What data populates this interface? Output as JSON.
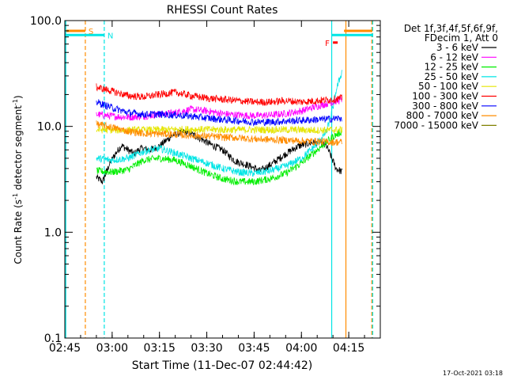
{
  "chart_data": {
    "type": "line",
    "title": "RHESSI Count Rates",
    "xlabel": "Start Time (11-Dec-07 02:44:42)",
    "ylabel_main": "Count Rate (s",
    "ylabel_sup1": "-1",
    "ylabel_mid": " detector segment",
    "ylabel_sup2": "-1",
    "ylabel_end": ")",
    "y_scale": "log",
    "ylim": [
      0.1,
      100.0
    ],
    "xlim_minutes": [
      0,
      100
    ],
    "yticks": [
      {
        "value": 100.0,
        "label": "100.0"
      },
      {
        "value": 10.0,
        "label": "10.0"
      },
      {
        "value": 1.0,
        "label": "1.0"
      },
      {
        "value": 0.1,
        "label": "0.1"
      }
    ],
    "xticks": [
      {
        "minute": 0,
        "label": "02:45"
      },
      {
        "minute": 15,
        "label": "03:00"
      },
      {
        "minute": 30,
        "label": "03:15"
      },
      {
        "minute": 45,
        "label": "03:30"
      },
      {
        "minute": 60,
        "label": "03:45"
      },
      {
        "minute": 75,
        "label": "04:00"
      },
      {
        "minute": 90,
        "label": "04:15"
      }
    ],
    "legend_header": [
      "Det 1f,3f,4f,5f,6f,9f,",
      "FDecim 1, Att 0"
    ],
    "legend_position": "right",
    "series": [
      {
        "name": "3 - 6 keV",
        "color": "#000000",
        "x": [
          10,
          12,
          14,
          16,
          18,
          20,
          22,
          24,
          27,
          30,
          34,
          38,
          42,
          46,
          50,
          54,
          58,
          62,
          66,
          70,
          74,
          78,
          81,
          83,
          86,
          88
        ],
        "y": [
          3.3,
          3.0,
          4.3,
          5.5,
          6.6,
          6.0,
          5.5,
          6.2,
          6.0,
          6.5,
          8.2,
          9.0,
          8.0,
          6.8,
          6.0,
          4.7,
          4.3,
          3.8,
          4.5,
          5.5,
          6.5,
          7.0,
          7.0,
          6.5,
          4.0,
          3.7
        ]
      },
      {
        "name": "6 - 12 keV",
        "color": "#ff00ff",
        "x": [
          10,
          15,
          20,
          25,
          30,
          35,
          40,
          45,
          50,
          55,
          60,
          65,
          70,
          75,
          80,
          85,
          88
        ],
        "y": [
          13.0,
          12.5,
          12.2,
          12.5,
          13.0,
          13.5,
          14.5,
          14.0,
          13.2,
          12.8,
          12.6,
          12.8,
          13.2,
          14.0,
          15.5,
          17.0,
          18.0
        ]
      },
      {
        "name": "12 - 25 keV",
        "color": "#00ee00",
        "x": [
          10,
          15,
          20,
          25,
          30,
          35,
          40,
          45,
          50,
          55,
          60,
          65,
          70,
          75,
          80,
          85,
          88
        ],
        "y": [
          3.8,
          3.7,
          3.9,
          4.8,
          5.0,
          4.8,
          4.2,
          3.6,
          3.2,
          3.0,
          3.0,
          3.2,
          3.6,
          4.5,
          6.0,
          8.0,
          9.0
        ]
      },
      {
        "name": "25 - 50 keV",
        "color": "#00e5e5",
        "x": [
          10,
          15,
          20,
          25,
          30,
          35,
          40,
          45,
          50,
          55,
          60,
          65,
          70,
          75,
          80,
          83,
          85,
          86,
          88
        ],
        "y": [
          5.0,
          4.8,
          5.0,
          5.8,
          6.2,
          5.6,
          5.0,
          4.5,
          4.0,
          3.7,
          3.6,
          3.8,
          4.2,
          5.0,
          6.8,
          9.0,
          15.0,
          22.0,
          34.0
        ]
      },
      {
        "name": "50 - 100 keV",
        "color": "#e5e500",
        "x": [
          10,
          20,
          30,
          40,
          50,
          60,
          70,
          80,
          88
        ],
        "y": [
          9.3,
          9.2,
          9.3,
          9.4,
          9.3,
          9.3,
          9.3,
          9.2,
          9.3
        ]
      },
      {
        "name": "100 - 300 keV",
        "color": "#ff0000",
        "x": [
          10,
          15,
          20,
          25,
          30,
          35,
          40,
          45,
          50,
          55,
          60,
          65,
          70,
          75,
          80,
          85,
          88
        ],
        "y": [
          23.5,
          21.5,
          19.5,
          19.0,
          20.0,
          21.0,
          19.5,
          18.5,
          18.0,
          17.5,
          17.0,
          17.0,
          17.5,
          17.0,
          17.5,
          18.0,
          18.5
        ]
      },
      {
        "name": "300 - 800 keV",
        "color": "#0000ff",
        "x": [
          10,
          15,
          20,
          25,
          30,
          35,
          40,
          45,
          50,
          55,
          60,
          65,
          70,
          75,
          80,
          85,
          88
        ],
        "y": [
          17.0,
          15.0,
          13.5,
          13.0,
          13.0,
          12.8,
          12.5,
          12.0,
          11.6,
          11.3,
          11.0,
          11.0,
          11.2,
          11.4,
          11.6,
          11.8,
          12.0
        ]
      },
      {
        "name": "800 - 7000 keV",
        "color": "#ff8c00",
        "x": [
          10,
          15,
          20,
          25,
          30,
          35,
          40,
          45,
          50,
          55,
          60,
          65,
          70,
          75,
          80,
          85,
          88
        ],
        "y": [
          10.5,
          9.8,
          9.0,
          8.6,
          8.5,
          8.4,
          8.2,
          8.1,
          7.9,
          7.8,
          7.6,
          7.5,
          7.4,
          7.3,
          7.2,
          7.1,
          7.1
        ]
      },
      {
        "name": "7000 - 15000 keV",
        "color": "#808000",
        "x": [],
        "y": []
      }
    ],
    "markers": [
      {
        "label": "S",
        "color": "#ff8c00",
        "minute": 0.5,
        "minute_end": 6.5,
        "yval": 80.0
      },
      {
        "label": "N",
        "color": "#00e5e5",
        "minute": 0.0,
        "minute_end": 12.5,
        "yval": 73.0
      },
      {
        "label": "F",
        "color": "#ff0000",
        "minute": 85.0,
        "minute_end": 86.5,
        "yval": 62.0
      }
    ],
    "right_bars": [
      {
        "color": "#ff8c00",
        "minute": 88.5,
        "minute_end": 97.5,
        "yval": 80.0
      },
      {
        "color": "#00e5e5",
        "minute": 84.5,
        "minute_end": 97.5,
        "yval": 73.0
      }
    ],
    "vlines": [
      {
        "minute": 0.3,
        "color": "#00e5e5",
        "dashed": false
      },
      {
        "minute": 6.5,
        "color": "#ff8c00",
        "dashed": true
      },
      {
        "minute": 12.5,
        "color": "#00e5e5",
        "dashed": true
      },
      {
        "minute": 84.6,
        "color": "#00e5e5",
        "dashed": false
      },
      {
        "minute": 89.1,
        "color": "#ff8c00",
        "dashed": false
      },
      {
        "minute": 97.3,
        "color": "#ff8c00",
        "dashed": true
      },
      {
        "minute": 97.6,
        "color": "#00e5e5",
        "dashed": true
      }
    ]
  },
  "footer_timestamp": "17-Oct-2021 03:18"
}
